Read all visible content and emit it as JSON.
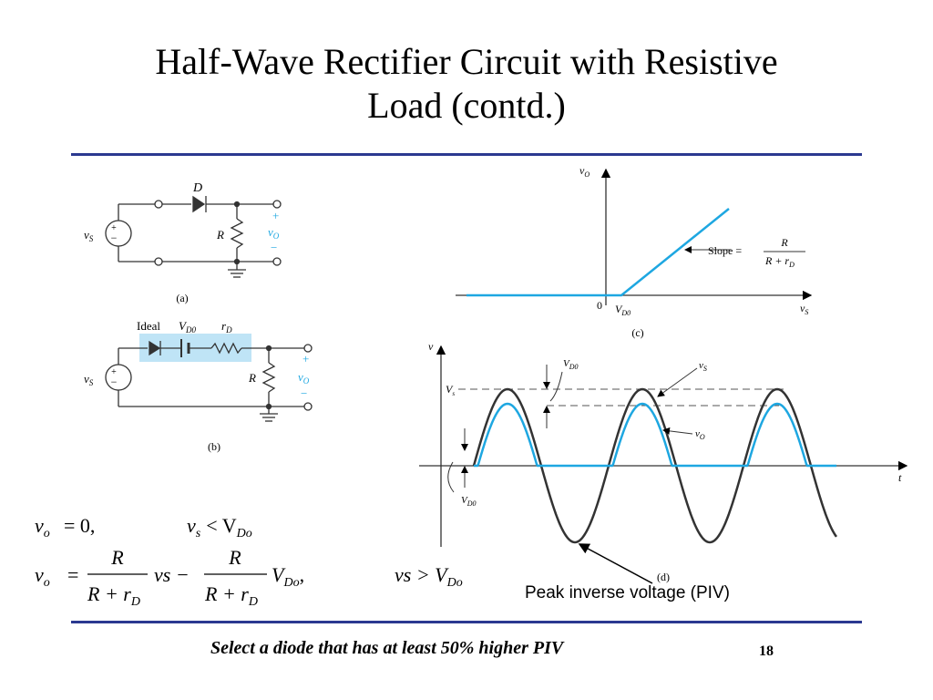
{
  "title": {
    "line1": "Half-Wave Rectifier Circuit with Resistive",
    "line2": "Load (contd.)"
  },
  "colors": {
    "accent_rule": "#2b3990",
    "signal_blue": "#1ea7e1",
    "ideal_box": "#bfe4f6"
  },
  "circuit_a": {
    "diode": "D",
    "source": "v",
    "source_sub": "S",
    "resistor": "R",
    "out_plus": "+",
    "out_v": "v",
    "out_sub": "O",
    "out_minus": "−",
    "src_plus": "+",
    "src_minus": "−",
    "caption": "(a)"
  },
  "circuit_b": {
    "ideal": "Ideal",
    "vd0": "V",
    "vd0_sub": "D0",
    "rd": "r",
    "rd_sub": "D",
    "source": "v",
    "source_sub": "S",
    "resistor": "R",
    "out_plus": "+",
    "out_v": "v",
    "out_sub": "O",
    "out_minus": "−",
    "src_plus": "+",
    "src_minus": "−",
    "caption": "(b)"
  },
  "graph_c": {
    "y_axis": "v",
    "y_axis_sub": "O",
    "x_axis": "v",
    "x_axis_sub": "S",
    "origin": "0",
    "knee": "V",
    "knee_sub": "D0",
    "slope_label": "Slope =",
    "slope_num": "R",
    "slope_den": "R + r",
    "slope_den_sub": "D",
    "caption": "(c)"
  },
  "graph_d": {
    "y_axis": "v",
    "x_axis": "t",
    "vs_peak": "V",
    "vs_peak_sub": "s",
    "vd0_top": "V",
    "vd0_top_sub": "D0",
    "vs_label": "v",
    "vs_label_sub": "S",
    "vo_label": "v",
    "vo_label_sub": "O",
    "vd0_bottom": "V",
    "vd0_bottom_sub": "D0",
    "caption": "(d)"
  },
  "equations": {
    "eq1_lhs": "v",
    "eq1_lhs_sub": "o",
    "eq1_rhs": "= 0,",
    "eq1_cond": "v",
    "eq1_cond_sub": "s",
    "eq1_cond_op": "< V",
    "eq1_cond_sub2": "Do",
    "eq2_lhs": "v",
    "eq2_lhs_sub": "o",
    "eq2_eq": "=",
    "frac_num": "R",
    "frac_den": "R + r",
    "frac_den_sub": "D",
    "term1": "vs −",
    "term2": "V",
    "term2_sub": "Do",
    "term2_end": ",",
    "eq2_cond": "vs > V",
    "eq2_cond_sub": "Do"
  },
  "piv_label": "Peak inverse voltage (PIV)",
  "footer_note": "Select a diode that has at least 50% higher PIV",
  "page_number": "18"
}
